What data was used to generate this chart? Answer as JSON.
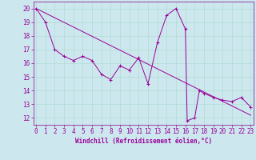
{
  "xlabel": "Windchill (Refroidissement éolien,°C)",
  "bg_color": "#cce8ee",
  "line_color": "#990099",
  "series": [
    [
      0,
      20
    ],
    [
      1,
      19
    ],
    [
      2,
      17
    ],
    [
      3,
      16.5
    ],
    [
      4,
      16.2
    ],
    [
      5,
      16.5
    ],
    [
      6,
      16.2
    ],
    [
      7,
      15.2
    ],
    [
      8,
      14.8
    ],
    [
      9,
      15.8
    ],
    [
      10,
      15.5
    ],
    [
      11,
      16.4
    ],
    [
      12,
      14.5
    ],
    [
      13,
      17.5
    ],
    [
      14,
      19.5
    ],
    [
      15,
      20.0
    ],
    [
      16,
      18.5
    ],
    [
      16.2,
      11.8
    ],
    [
      17,
      12.0
    ],
    [
      17.5,
      14.0
    ],
    [
      18,
      13.8
    ],
    [
      19,
      13.5
    ],
    [
      20,
      13.3
    ],
    [
      21,
      13.2
    ],
    [
      22,
      13.5
    ],
    [
      23,
      12.8
    ]
  ],
  "series2": [
    [
      0,
      20
    ],
    [
      23,
      12.2
    ]
  ],
  "xlim": [
    -0.3,
    23.3
  ],
  "ylim": [
    11.5,
    20.5
  ],
  "yticks": [
    12,
    13,
    14,
    15,
    16,
    17,
    18,
    19,
    20
  ],
  "xticks": [
    0,
    1,
    2,
    3,
    4,
    5,
    6,
    7,
    8,
    9,
    10,
    11,
    12,
    13,
    14,
    15,
    16,
    17,
    18,
    19,
    20,
    21,
    22,
    23
  ],
  "grid_color": "#aad8cc",
  "spine_color": "#880088",
  "tick_fontsize": 5.5,
  "xlabel_fontsize": 5.5
}
